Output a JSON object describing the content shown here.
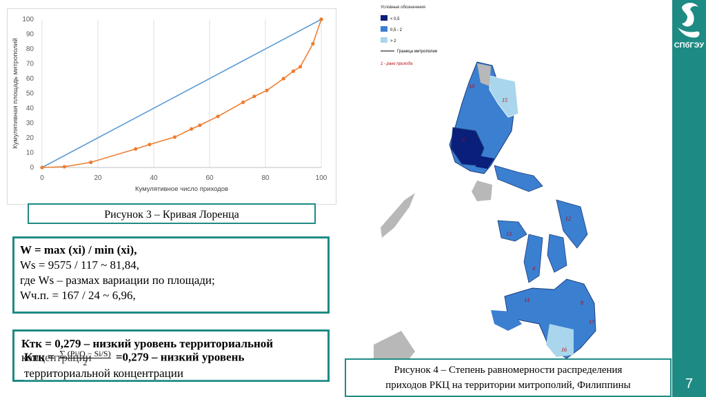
{
  "chart_data": {
    "type": "line",
    "xlabel": "Кумулятивное число приходов",
    "ylabel": "Кумулятивная площадь митрополий",
    "xlim": [
      0,
      100
    ],
    "ylim": [
      0,
      100
    ],
    "x_ticks": [
      "0",
      "20",
      "40",
      "60",
      "80",
      "100"
    ],
    "y_ticks": [
      "0",
      "10",
      "20",
      "30",
      "40",
      "50",
      "60",
      "70",
      "80",
      "90",
      "100"
    ],
    "series": [
      {
        "color": "#5b9bd5",
        "x": [
          0,
          100
        ],
        "y": [
          0,
          100
        ]
      },
      {
        "color": "#ed7d31",
        "x": [
          0,
          8,
          17.5,
          33.5,
          38.5,
          47.5,
          53.5,
          56.5,
          63,
          72,
          76,
          80.5,
          86.5,
          90,
          92.5,
          97,
          100
        ],
        "y": [
          0,
          0.5,
          3.5,
          12.5,
          15.5,
          20.5,
          26,
          28.5,
          34.5,
          44,
          48,
          52,
          60,
          65,
          68,
          83.5,
          100
        ]
      }
    ]
  },
  "captions": {
    "fig3": "Рисунок 3 – Кривая Лоренца",
    "fig4_line1": "Рисунок 4 – Степень равномерности распределения",
    "fig4_line2": "приходов РКЦ на территории митрополий, Филиппины"
  },
  "formula1": {
    "line1": "W = max (xi) / min (xi),",
    "line2": "Ws = 9575 / 117 ~ 81,84,",
    "line3": "где Ws – размах вариации по площади;",
    "line4": "Wч.п. = 167 / 24 ~ 6,96,"
  },
  "formula2": {
    "back_text_a": "Ктк = 0,279 – низкий уровень территориальной",
    "back_text_b": "концентрации",
    "front_prefix": "Ктк = ",
    "front_num": "∑ (Pi/O − Si/S)",
    "front_den": "2",
    "front_suffix": " =0,279 – низкий уровень",
    "front_line2": "территориальной концентрации"
  },
  "legend": {
    "title": "Условные обозначения",
    "items": [
      {
        "label": "< 0,5",
        "color": "#0a1f7a"
      },
      {
        "label": "0,5 - 2",
        "color": "#3b7fd1"
      },
      {
        "label": "> 2",
        "color": "#a9d6ec"
      }
    ],
    "boundary": "Граница митрополии",
    "rank": "1 - ранг прихода"
  },
  "logo": "СПбГЭУ",
  "page_number": "7"
}
